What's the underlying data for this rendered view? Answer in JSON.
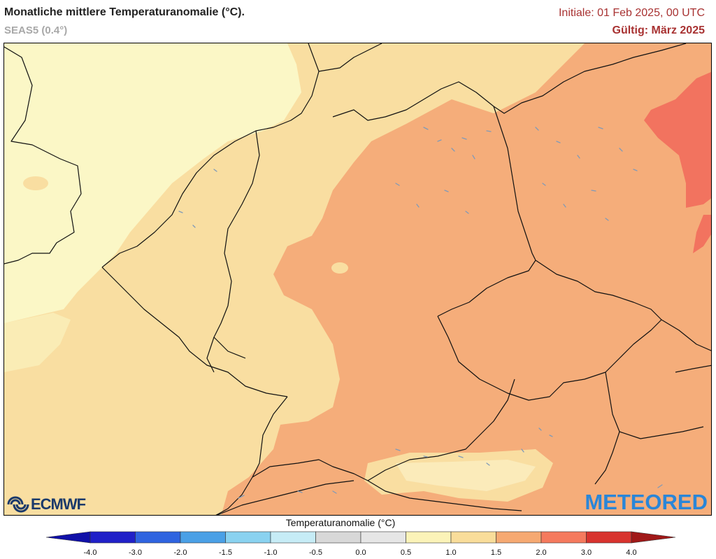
{
  "header": {
    "title": "Monatliche mittlere Temperaturanomalie (°C).",
    "subtitle": "SEAS5 (0.4°)",
    "initial": "Initiale: 01 Feb 2025, 00 UTC",
    "valid": "Gültig: März 2025"
  },
  "logos": {
    "left": "ECMWF",
    "right": "METEORED"
  },
  "legend": {
    "title": "Temperaturanomalie (°C)",
    "ticks": [
      "-4.0",
      "-3.0",
      "-2.0",
      "-1.5",
      "-1.0",
      "-0.5",
      "0.0",
      "0.5",
      "1.0",
      "1.5",
      "2.0",
      "3.0",
      "4.0"
    ],
    "colors": [
      "#2020c8",
      "#2f64e0",
      "#4aa0e6",
      "#8ad2f0",
      "#c6ecf6",
      "#d8d8d8",
      "#e6e6e6",
      "#fbf3b8",
      "#f9dd9a",
      "#f6a972",
      "#f57a5e",
      "#d8332e"
    ],
    "underflow_color": "#1010a8",
    "overflow_color": "#a01818"
  },
  "map_colors": {
    "anomaly_0_5_to_1_0": "#fbf7c6",
    "anomaly_1_0_to_1_5": "#f9dea1",
    "anomaly_1_5_to_2_0": "#f5ad7a",
    "anomaly_2_0_to_3_0": "#f2735f",
    "border": "#111111",
    "lakes": "#7f9ab8"
  }
}
